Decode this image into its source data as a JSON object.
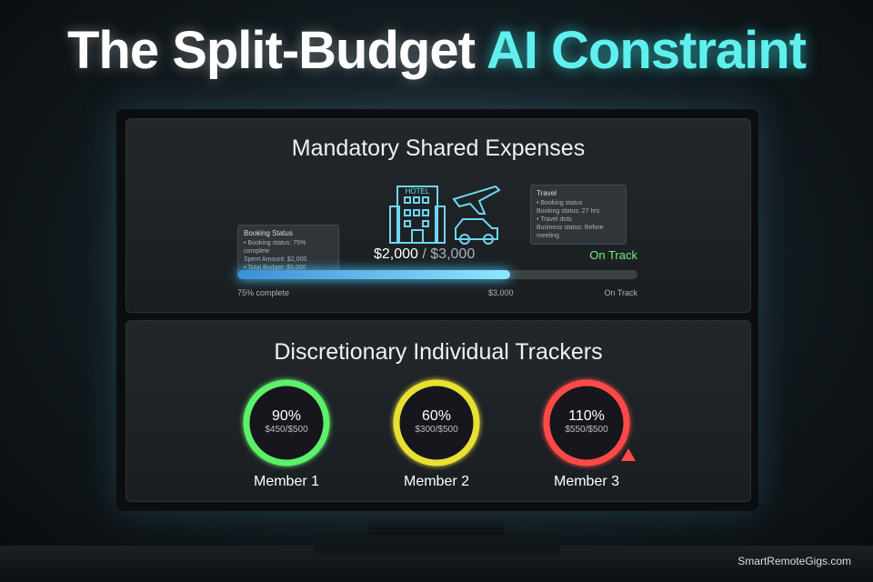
{
  "header": {
    "title_white": "The Split-Budget",
    "title_accent": "AI Constraint"
  },
  "shared": {
    "title": "Mandatory Shared Expenses",
    "hotel_sign": "HOTEL",
    "booking_card": {
      "title": "Booking Status",
      "lines": [
        "• Booking status: 75% complete",
        "Spent Amount: $2,000",
        "• Total Budget: $3,000"
      ]
    },
    "travel_card": {
      "title": "Travel",
      "lines": [
        "• Booking status",
        "Booking status: 27 hrs",
        "• Travel dots",
        "Business status: Before meeting"
      ]
    },
    "spent": "$2,000",
    "total": "/ $3,000",
    "status": "On Track",
    "bar_labels": {
      "left": "75% complete",
      "middle": "$3,000",
      "right": "On Track"
    }
  },
  "trackers": {
    "title": "Discretionary Individual Trackers",
    "members": [
      {
        "percent": "90%",
        "amount": "$450/$500",
        "name": "Member 1"
      },
      {
        "percent": "60%",
        "amount": "$300/$500",
        "name": "Member 2"
      },
      {
        "percent": "110%",
        "amount": "$550/$500",
        "name": "Member 3"
      }
    ]
  },
  "footer": "SmartRemoteGigs.com"
}
